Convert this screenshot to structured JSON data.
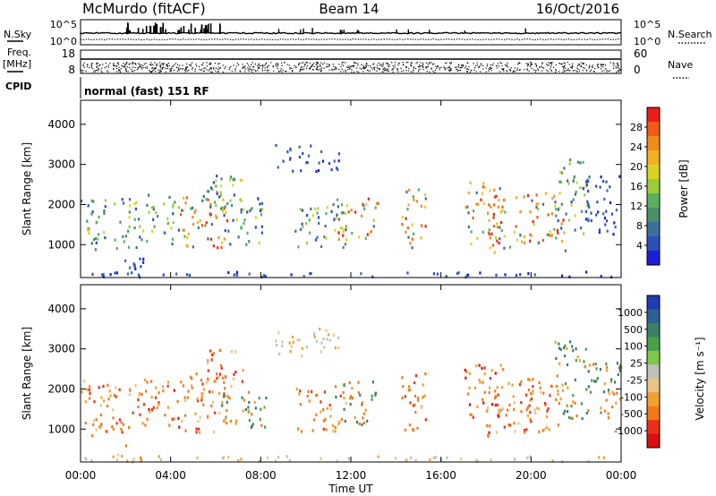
{
  "header": {
    "title": "McMurdo (fitACF)",
    "beam": "Beam 14",
    "date": "16/Oct/2016"
  },
  "top_panels": {
    "nsky_label": "N.Sky",
    "nsearch_label": "N.Search",
    "nsky_ticks": [
      "10^5",
      "10^0"
    ],
    "nsearch_ticks": [
      "10^5",
      "10^0"
    ],
    "freq_label_line1": "Freq.",
    "freq_label_line2": "[MHz]",
    "freq_ticks": [
      "18",
      "8"
    ],
    "nave_label": "Nave",
    "nave_ticks": [
      "60",
      "0"
    ],
    "cpid_label": "CPID",
    "cpid_text": "normal (fast) 151 RF"
  },
  "chart_data": [
    {
      "type": "heatmap",
      "name": "power",
      "ylabel": "Slant Range [km]",
      "xlabel": "Time UT",
      "x_ticks": [
        "00:00",
        "04:00",
        "08:00",
        "12:00",
        "16:00",
        "20:00",
        "00:00"
      ],
      "xlim_hours": [
        0,
        24
      ],
      "y_ticks": [
        1000,
        2000,
        3000,
        4000
      ],
      "ylim": [
        180,
        4600
      ],
      "colorbar": {
        "label": "Power [dB]",
        "ticks": [
          "28",
          "24",
          "20",
          "16",
          "12",
          "8",
          "4"
        ],
        "colors": [
          "#e8201b",
          "#f05a1a",
          "#f08c1e",
          "#f0b020",
          "#dcd226",
          "#9ccc3a",
          "#58b060",
          "#4a8f68",
          "#3d6f9e",
          "#2c4fb8",
          "#1b1ed8"
        ]
      },
      "regions": [
        {
          "t0": 0.0,
          "t1": 0.9,
          "r0": 800,
          "r1": 2200,
          "level": "mid"
        },
        {
          "t0": 0.6,
          "t1": 2.6,
          "r0": 900,
          "r1": 2200,
          "level": "mid"
        },
        {
          "t0": 1.5,
          "t1": 2.8,
          "r0": 200,
          "r1": 650,
          "level": "low"
        },
        {
          "t0": 2.6,
          "t1": 4.4,
          "r0": 1000,
          "r1": 2300,
          "level": "mid"
        },
        {
          "t0": 4.3,
          "t1": 6.6,
          "r0": 900,
          "r1": 2400,
          "level": "high"
        },
        {
          "t0": 5.5,
          "t1": 7.2,
          "r0": 1800,
          "r1": 3000,
          "level": "mid"
        },
        {
          "t0": 6.2,
          "t1": 8.2,
          "r0": 1000,
          "r1": 2200,
          "level": "mid"
        },
        {
          "t0": 8.6,
          "t1": 11.5,
          "r0": 2800,
          "r1": 3500,
          "level": "low"
        },
        {
          "t0": 9.5,
          "t1": 11.8,
          "r0": 900,
          "r1": 2000,
          "level": "mid"
        },
        {
          "t0": 11.2,
          "t1": 13.2,
          "r0": 1100,
          "r1": 2200,
          "level": "high"
        },
        {
          "t0": 14.2,
          "t1": 15.3,
          "r0": 900,
          "r1": 2400,
          "level": "high"
        },
        {
          "t0": 17.0,
          "t1": 18.8,
          "r0": 900,
          "r1": 2600,
          "level": "high"
        },
        {
          "t0": 18.0,
          "t1": 21.6,
          "r0": 800,
          "r1": 2300,
          "level": "high"
        },
        {
          "t0": 21.0,
          "t1": 22.5,
          "r0": 1200,
          "r1": 3200,
          "level": "mid"
        },
        {
          "t0": 22.4,
          "t1": 24.0,
          "r0": 1200,
          "r1": 2700,
          "level": "low"
        },
        {
          "t0": 0.0,
          "t1": 24.0,
          "r0": 180,
          "r1": 320,
          "level": "low"
        }
      ]
    },
    {
      "type": "heatmap",
      "name": "velocity",
      "ylabel": "Slant Range [km]",
      "xlabel": "Time UT",
      "x_ticks": [
        "00:00",
        "04:00",
        "08:00",
        "12:00",
        "16:00",
        "20:00",
        "00:00"
      ],
      "xlim_hours": [
        0,
        24
      ],
      "y_ticks": [
        1000,
        2000,
        3000,
        4000
      ],
      "ylim": [
        180,
        4600
      ],
      "colorbar": {
        "label": "Velocity [m s⁻¹]",
        "ticks": [
          "1000",
          "500",
          "100",
          "25",
          "-25",
          "-100",
          "-500",
          "-1000"
        ],
        "colors": [
          "#1f3cb0",
          "#2f5f94",
          "#3d7e66",
          "#4aa04a",
          "#7ec84a",
          "#c0c0b4",
          "#e8c48a",
          "#f0a030",
          "#f07a1a",
          "#e8301a",
          "#d81010"
        ]
      },
      "regions": [
        {
          "t0": 0.0,
          "t1": 0.9,
          "r0": 800,
          "r1": 2200,
          "level": "neg"
        },
        {
          "t0": 0.6,
          "t1": 2.6,
          "r0": 900,
          "r1": 2200,
          "level": "neg"
        },
        {
          "t0": 1.5,
          "t1": 2.8,
          "r0": 200,
          "r1": 650,
          "level": "neg"
        },
        {
          "t0": 2.6,
          "t1": 4.4,
          "r0": 1000,
          "r1": 2300,
          "level": "strongneg"
        },
        {
          "t0": 4.3,
          "t1": 6.6,
          "r0": 900,
          "r1": 2400,
          "level": "neg"
        },
        {
          "t0": 5.5,
          "t1": 7.2,
          "r0": 1800,
          "r1": 3000,
          "level": "neg"
        },
        {
          "t0": 6.2,
          "t1": 8.2,
          "r0": 1000,
          "r1": 2200,
          "level": "pos"
        },
        {
          "t0": 8.6,
          "t1": 11.5,
          "r0": 2800,
          "r1": 3500,
          "level": "zero"
        },
        {
          "t0": 9.5,
          "t1": 11.8,
          "r0": 900,
          "r1": 2000,
          "level": "neg"
        },
        {
          "t0": 11.2,
          "t1": 13.2,
          "r0": 1100,
          "r1": 2200,
          "level": "pos"
        },
        {
          "t0": 14.2,
          "t1": 15.3,
          "r0": 900,
          "r1": 2400,
          "level": "neg"
        },
        {
          "t0": 17.0,
          "t1": 18.8,
          "r0": 900,
          "r1": 2600,
          "level": "strongneg"
        },
        {
          "t0": 18.0,
          "t1": 21.6,
          "r0": 800,
          "r1": 2300,
          "level": "neg"
        },
        {
          "t0": 21.0,
          "t1": 22.5,
          "r0": 1200,
          "r1": 3200,
          "level": "pos"
        },
        {
          "t0": 22.4,
          "t1": 24.0,
          "r0": 1200,
          "r1": 2700,
          "level": "pos"
        },
        {
          "t0": 0.0,
          "t1": 24.0,
          "r0": 180,
          "r1": 320,
          "level": "zero"
        }
      ]
    }
  ]
}
